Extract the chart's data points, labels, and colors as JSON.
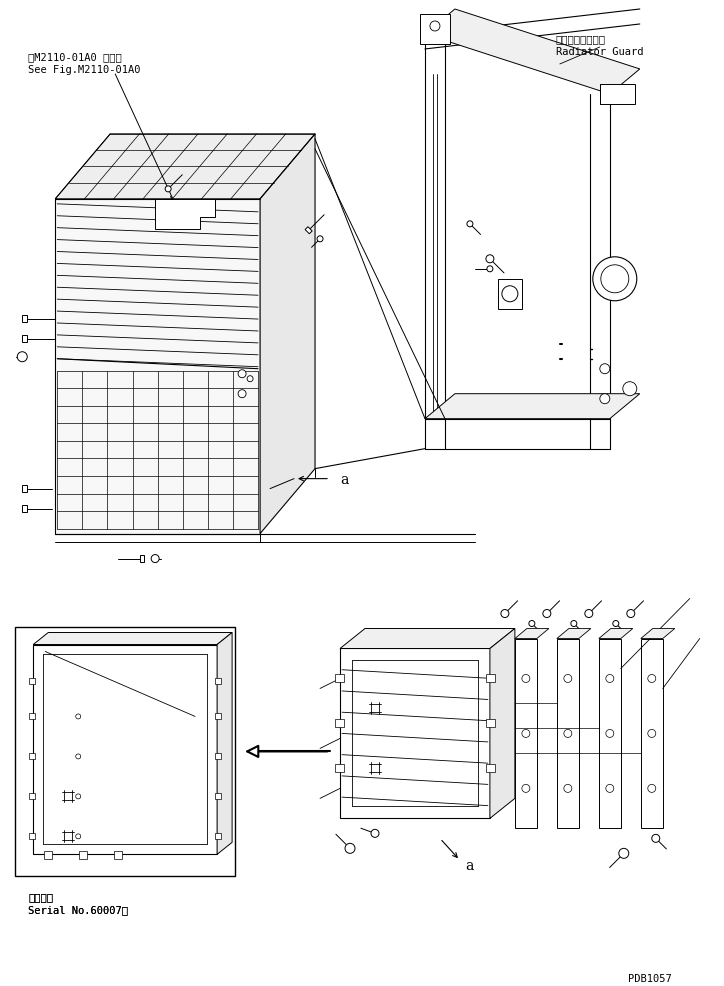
{
  "bg_color": "#ffffff",
  "lc": "#000000",
  "top_left_line1": "第M2110-01A0 図参照",
  "top_left_line2": "See Fig.M2110-01A0",
  "top_right_line1": "ラジエータガード",
  "top_right_line2": "Radiator Guard",
  "label_a_mid": "a",
  "label_a_bot": "a",
  "bottom_left_line1": "適用号機",
  "bottom_left_line2": "Serial No.60007～",
  "bottom_right_label": "PDB1057",
  "fs": 7.5
}
